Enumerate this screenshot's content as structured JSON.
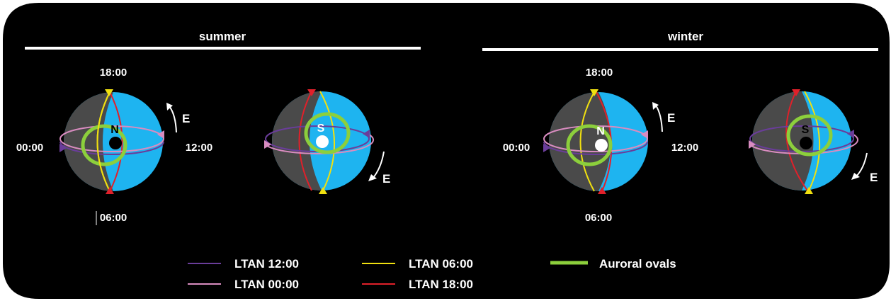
{
  "headings": {
    "summer": "summer",
    "winter": "winter"
  },
  "times": {
    "t18": "18:00",
    "t00": "00:00",
    "t12": "12:00",
    "t06": "06:00"
  },
  "poles": {
    "north": "N",
    "south": "S"
  },
  "direction": "E",
  "legend": {
    "ltan12": {
      "label": "LTAN 12:00",
      "color": "#6a3d9a"
    },
    "ltan00": {
      "label": "LTAN 00:00",
      "color": "#d98cc0"
    },
    "ltan06": {
      "label": "LTAN 06:00",
      "color": "#f0e010"
    },
    "ltan18": {
      "label": "LTAN 18:00",
      "color": "#e0202a"
    },
    "oval": {
      "label": "Auroral ovals",
      "color": "#8ccf3c"
    }
  },
  "colors": {
    "background": "#000000",
    "day_side": "#1eb4f0",
    "night_side": "#4a4a4a"
  }
}
